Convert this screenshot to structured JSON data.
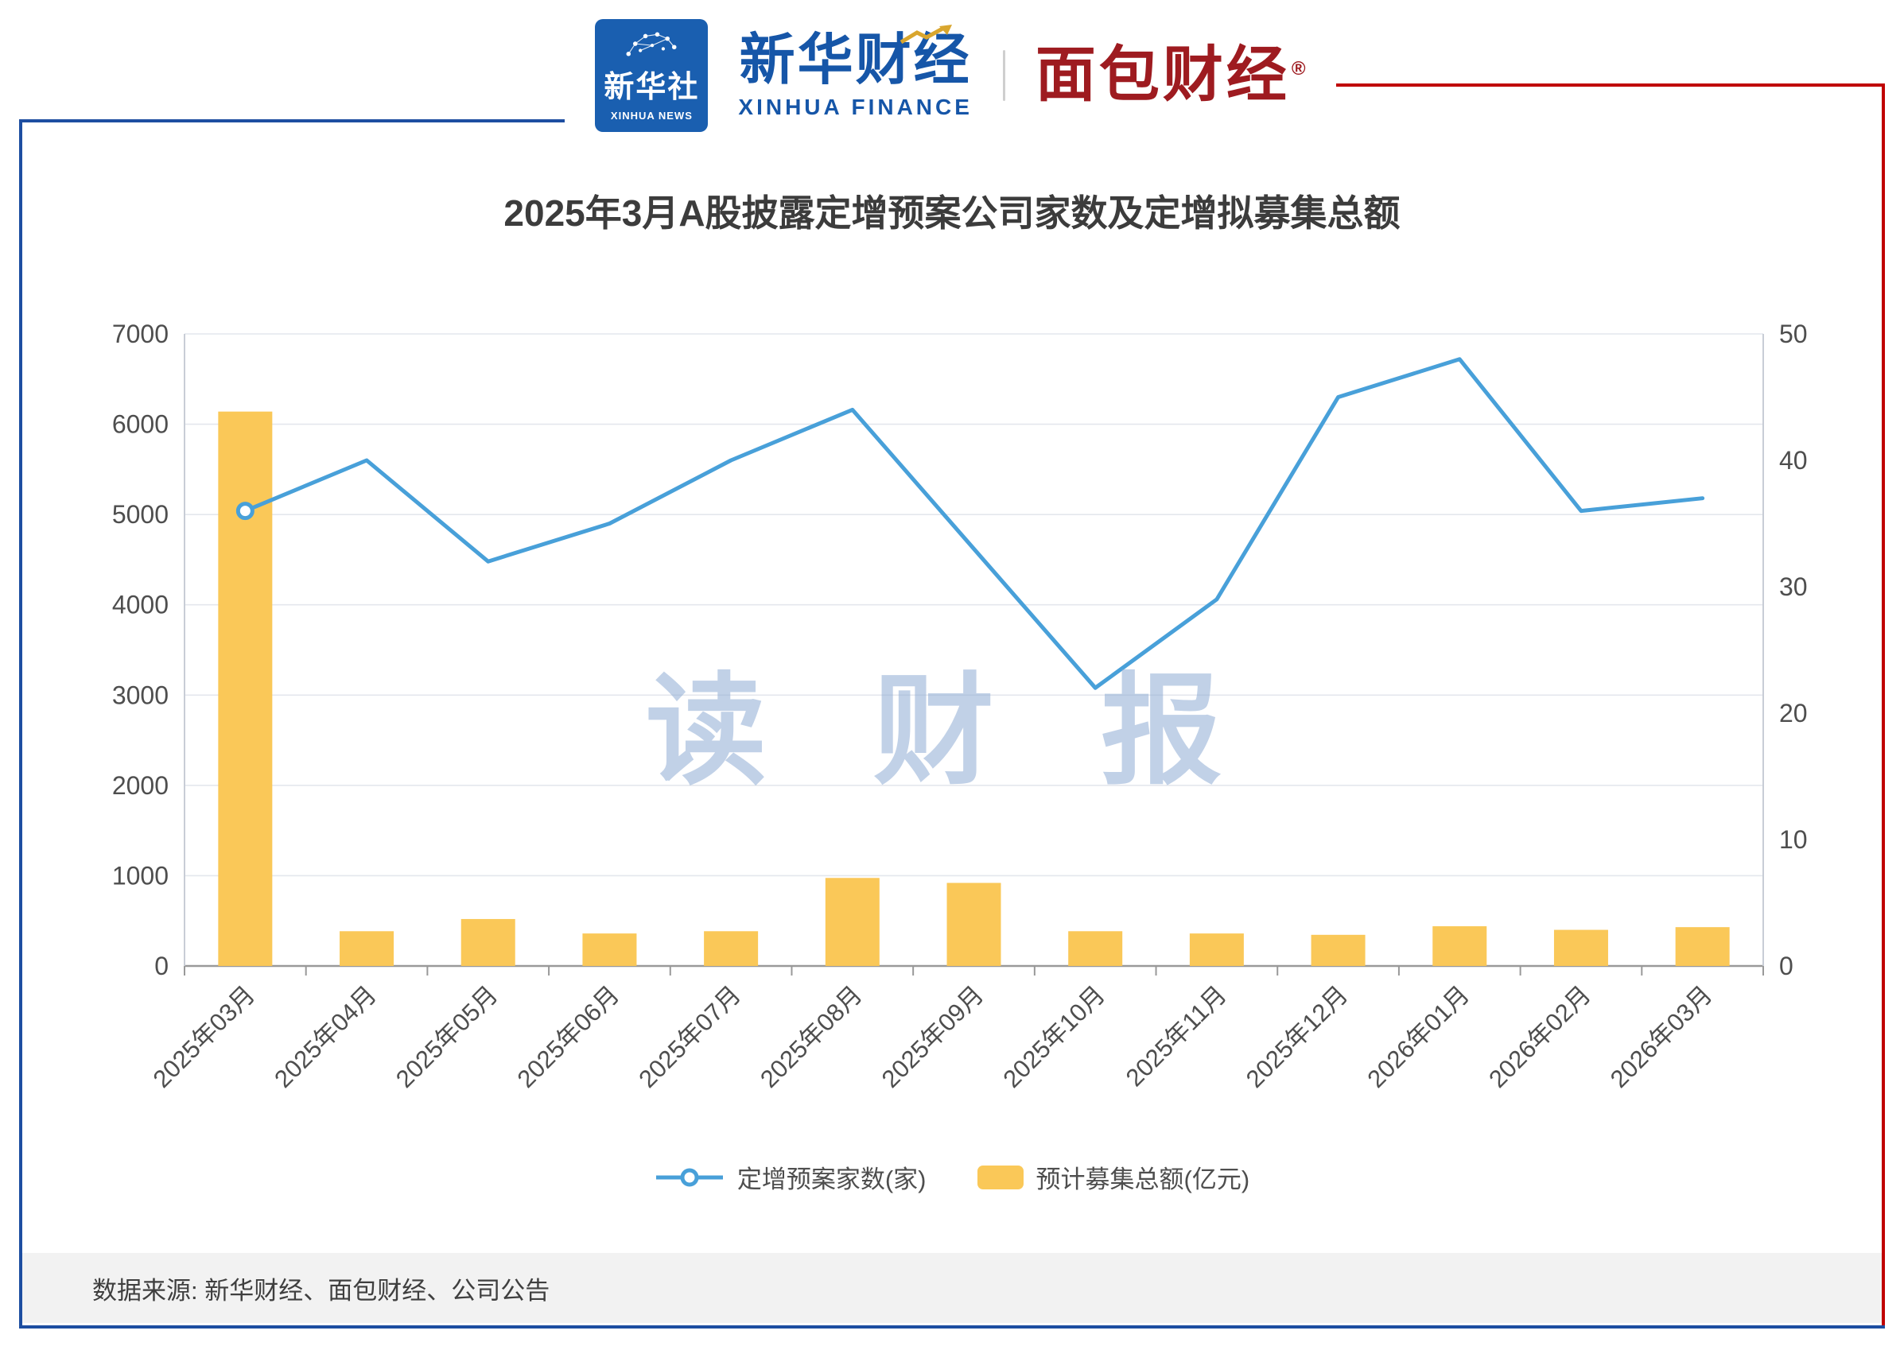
{
  "header": {
    "xinhua_logo": {
      "cn": "新华社",
      "en": "XINHUA NEWS"
    },
    "brand": {
      "cn": "新华财经",
      "en": "XINHUA FINANCE"
    },
    "divider": "|",
    "mianbao": {
      "cn": "面包财经",
      "reg": "®"
    }
  },
  "watermark": "读 财 报",
  "footer": {
    "source": "数据来源: 新华财经、面包财经、公司公告"
  },
  "colors": {
    "border_blue": "#1D4EA1",
    "border_red": "#C00000",
    "logo_blue": "#1A5FB0",
    "brand_blue": "#1656A8",
    "brand_red": "#9E1B20",
    "bar": "#FAC858",
    "line": "#48A0D9",
    "grid": "#E4E7ED",
    "axis_line": "#999999",
    "axis_text": "#4E4E4E",
    "title_text": "#3C3C3C",
    "watermark": "#8FACD4",
    "footer_bg": "#F2F2F2",
    "footer_text": "#3F3F3F",
    "gold": "#D9A62E"
  },
  "chart_data": {
    "type": "bar",
    "subtype": "bar+line dual axis",
    "title": "2025年3月A股披露定增预案公司家数及定增拟募集总额",
    "categories": [
      "2025年03月",
      "2025年04月",
      "2025年05月",
      "2025年06月",
      "2025年07月",
      "2025年08月",
      "2025年09月",
      "2025年10月",
      "2025年11月",
      "2025年12月",
      "2026年01月",
      "2026年02月",
      "2026年03月"
    ],
    "series": [
      {
        "name": "定增预案家数(家)",
        "type": "line",
        "axis": "right",
        "color": "#48A0D9",
        "values": [
          36,
          40,
          32,
          35,
          40,
          44,
          33,
          22,
          29,
          45,
          48,
          36,
          37
        ]
      },
      {
        "name": "预计募集总额(亿元)",
        "type": "bar",
        "axis": "left",
        "color": "#FAC858",
        "values": [
          6140,
          385,
          520,
          360,
          385,
          975,
          920,
          385,
          360,
          345,
          440,
          400,
          430
        ]
      }
    ],
    "left_axis": {
      "min": 0,
      "max": 7000,
      "step": 1000
    },
    "right_axis": {
      "min": 0,
      "max": 50,
      "step": 10
    },
    "grid": true,
    "legend_position": "bottom",
    "xlabel": "",
    "ylabel": ""
  }
}
